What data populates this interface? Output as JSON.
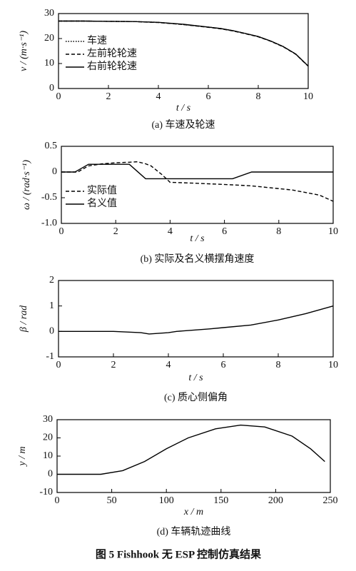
{
  "chart_data": [
    {
      "type": "line",
      "subtitle": "(a) 车速及轮速",
      "x_label": "t / s",
      "y_label": "v / (m·s⁻¹)",
      "x": [
        0,
        1,
        2,
        3,
        4,
        5,
        6,
        6.5,
        7,
        7.5,
        8,
        8.5,
        9,
        9.5,
        10
      ],
      "series": [
        {
          "name": "车速",
          "color": "#000000",
          "dash": "dotted",
          "values": [
            27,
            27,
            26.9,
            26.8,
            26.5,
            25.6,
            24.6,
            24,
            23.1,
            22,
            20.8,
            19,
            16.8,
            13.8,
            9
          ]
        },
        {
          "name": "左前轮轮速",
          "color": "#000000",
          "dash": "dashed",
          "values": [
            27,
            27,
            26.9,
            26.8,
            26.4,
            25.6,
            24.5,
            23.9,
            23,
            21.9,
            20.7,
            18.9,
            16.7,
            13.7,
            8.9
          ]
        },
        {
          "name": "右前轮轮速",
          "color": "#000000",
          "dash": "solid",
          "values": [
            27,
            27,
            26.9,
            26.8,
            26.5,
            25.7,
            24.6,
            24,
            23.1,
            22,
            20.8,
            19,
            16.8,
            13.8,
            9
          ]
        }
      ],
      "xlim": [
        0,
        10
      ],
      "xticks": [
        0,
        2,
        4,
        6,
        8,
        10
      ],
      "ylim": [
        0,
        30
      ],
      "yticks": [
        0,
        10,
        20,
        30
      ],
      "legend": "upper left"
    },
    {
      "type": "line",
      "subtitle": "(b) 实际及名义横摆角速度",
      "x_label": "t / s",
      "y_label": "ω / (rad·s⁻¹)",
      "x": [
        0,
        0.5,
        0.6,
        1,
        1.5,
        2,
        2.5,
        2.8,
        3.1,
        3.3,
        3.7,
        4,
        5,
        6.3,
        7,
        8.5,
        9.5,
        10
      ],
      "series": [
        {
          "name": "实际值",
          "color": "#000000",
          "dash": "dashed",
          "values": [
            0,
            0,
            0,
            0.12,
            0.16,
            0.18,
            0.19,
            0.2,
            0.16,
            0.12,
            -0.05,
            -0.2,
            -0.22,
            -0.25,
            -0.27,
            -0.35,
            -0.45,
            -0.57
          ]
        },
        {
          "name": "名义值",
          "color": "#000000",
          "dash": "solid",
          "values": [
            0,
            0,
            0.03,
            0.15,
            0.15,
            0.15,
            0.15,
            0.01,
            -0.13,
            -0.13,
            -0.13,
            -0.13,
            -0.13,
            -0.13,
            0,
            0,
            0,
            0
          ]
        }
      ],
      "xlim": [
        0,
        10
      ],
      "xticks": [
        0,
        2,
        4,
        6,
        8,
        10
      ],
      "ylim": [
        -1,
        0.5
      ],
      "yticks": [
        0.5,
        0,
        -0.5,
        {
          "value": -1,
          "label": "-1.0"
        }
      ],
      "legend": "lower left"
    },
    {
      "type": "line",
      "subtitle": "(c) 质心侧偏角",
      "x_label": "t / s",
      "y_label": "β / rad",
      "x": [
        0,
        2,
        3,
        3.3,
        4,
        4.3,
        5.5,
        6,
        7,
        8,
        9,
        10
      ],
      "series": [
        {
          "name": null,
          "color": "#000000",
          "dash": "solid",
          "values": [
            0,
            0,
            -0.05,
            -0.1,
            -0.05,
            0,
            0.1,
            0.15,
            0.25,
            0.45,
            0.7,
            1.0
          ]
        }
      ],
      "xlim": [
        0,
        10
      ],
      "xticks": [
        0,
        2,
        4,
        6,
        8,
        10
      ],
      "ylim": [
        -1,
        2
      ],
      "yticks": [
        -1,
        0,
        1,
        2
      ]
    },
    {
      "type": "line",
      "subtitle": "(d) 车辆轨迹曲线",
      "x_label": "x / m",
      "y_label": "y / m",
      "x": [
        0,
        40,
        60,
        80,
        100,
        120,
        145,
        168,
        190,
        215,
        232,
        245
      ],
      "series": [
        {
          "name": null,
          "color": "#000000",
          "dash": "solid",
          "values": [
            0,
            0,
            2,
            7,
            14,
            20,
            25,
            27,
            26,
            21,
            14,
            7
          ]
        }
      ],
      "xlim": [
        0,
        250
      ],
      "xticks": [
        0,
        50,
        100,
        150,
        200,
        250
      ],
      "ylim": [
        -10,
        30
      ],
      "yticks": [
        -10,
        0,
        10,
        20,
        30
      ]
    }
  ],
  "caption": "图 5   Fishhook 无 ESP 控制仿真结果"
}
